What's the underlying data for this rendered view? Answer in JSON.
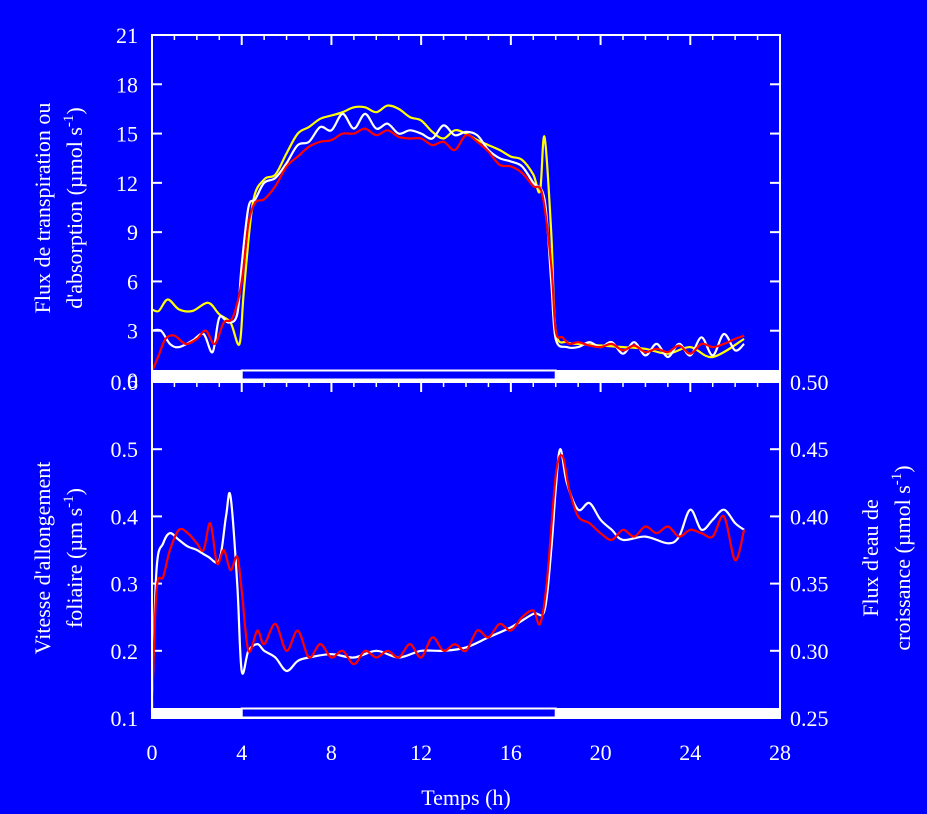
{
  "colors": {
    "background": "#0000ff",
    "frame": "#ffffff",
    "series_white": "#ffffff",
    "series_yellow": "#ffff00",
    "series_red": "#ff0000"
  },
  "chart_data": [
    {
      "type": "line",
      "panel": "top",
      "xlabel": "Temps (h)",
      "xlim": [
        0,
        28
      ],
      "x_ticks": [
        "0",
        "4",
        "8",
        "12",
        "16",
        "20",
        "24",
        "28"
      ],
      "ylabel_line1": "Flux de transpiration ou",
      "ylabel_line2": "d'absorption (µmol s",
      "ylabel_sup": "-1",
      "ylabel_end": ")",
      "ylim": [
        0,
        21
      ],
      "y_ticks": [
        "0",
        "3",
        "6",
        "9",
        "12",
        "15",
        "18",
        "21"
      ],
      "photoperiod": {
        "dark_before": [
          0,
          4
        ],
        "light": [
          4,
          18
        ],
        "dark_after": [
          18,
          28
        ]
      },
      "series": [
        {
          "color": "yellow",
          "x": [
            0,
            0.3,
            0.7,
            1.2,
            1.8,
            2.5,
            3.0,
            3.5,
            3.9,
            4.1,
            4.5,
            5.0,
            5.5,
            6.0,
            6.5,
            7.0,
            7.5,
            8.0,
            8.5,
            9.0,
            9.5,
            10.0,
            10.5,
            11.0,
            11.5,
            12.0,
            12.5,
            13.0,
            13.5,
            14.0,
            14.5,
            15.0,
            15.5,
            16.0,
            16.5,
            17.0,
            17.3,
            17.5,
            17.8,
            18.0,
            18.5,
            19.0,
            20.0,
            21.0,
            22.0,
            23.0,
            24.0,
            25.0,
            26.4
          ],
          "y": [
            4.3,
            4.2,
            4.9,
            4.3,
            4.2,
            4.7,
            4.0,
            3.5,
            2.2,
            5.5,
            10.8,
            12.2,
            12.5,
            13.8,
            15.0,
            15.4,
            15.9,
            16.1,
            16.3,
            16.6,
            16.6,
            16.3,
            16.7,
            16.5,
            16.0,
            15.8,
            15.1,
            14.7,
            15.2,
            15.0,
            14.6,
            14.3,
            14.0,
            13.6,
            13.4,
            12.5,
            11.5,
            14.8,
            9.0,
            3.0,
            2.3,
            2.2,
            2.1,
            2.0,
            1.9,
            1.6,
            2.0,
            1.4,
            2.5
          ]
        },
        {
          "color": "white",
          "x": [
            0,
            0.4,
            0.8,
            1.2,
            1.8,
            2.3,
            2.7,
            3.0,
            3.4,
            3.8,
            4.0,
            4.3,
            4.6,
            5.0,
            5.5,
            6.0,
            6.5,
            7.0,
            7.5,
            8.0,
            8.5,
            9.0,
            9.5,
            10.0,
            10.5,
            11.0,
            11.5,
            12.0,
            12.5,
            13.0,
            13.5,
            14.0,
            14.5,
            15.0,
            15.5,
            16.0,
            16.5,
            17.0,
            17.5,
            17.8,
            18.0,
            18.5,
            19.0,
            19.5,
            20.0,
            20.5,
            21.0,
            21.5,
            22.0,
            22.5,
            23.0,
            23.5,
            24.0,
            24.5,
            25.0,
            25.5,
            26.0,
            26.4
          ],
          "y": [
            3.0,
            3.0,
            2.2,
            2.0,
            2.4,
            2.8,
            1.7,
            3.8,
            3.5,
            4.0,
            7.0,
            10.5,
            11.0,
            12.0,
            12.3,
            13.2,
            14.3,
            14.5,
            15.4,
            15.2,
            16.2,
            15.3,
            16.2,
            15.3,
            15.6,
            15.0,
            15.2,
            15.0,
            14.7,
            15.5,
            14.9,
            15.1,
            14.9,
            14.0,
            13.5,
            13.3,
            13.0,
            12.0,
            11.0,
            6.0,
            2.5,
            2.0,
            2.0,
            2.3,
            2.0,
            2.3,
            1.6,
            2.3,
            1.5,
            2.2,
            1.4,
            2.2,
            1.5,
            2.6,
            1.5,
            2.8,
            1.8,
            2.2
          ]
        },
        {
          "color": "red",
          "x": [
            0,
            0.3,
            0.6,
            1.0,
            1.5,
            2.0,
            2.4,
            2.8,
            3.2,
            3.6,
            4.0,
            4.3,
            4.6,
            5.0,
            5.5,
            6.0,
            6.5,
            7.0,
            7.5,
            8.0,
            8.5,
            9.0,
            9.5,
            10.0,
            10.5,
            11.0,
            11.5,
            12.0,
            12.5,
            13.0,
            13.5,
            14.0,
            14.5,
            15.0,
            15.5,
            16.0,
            16.5,
            17.0,
            17.4,
            17.8,
            18.0,
            18.3,
            18.6,
            19.0,
            19.5,
            20.0,
            20.5,
            21.0,
            21.5,
            22.0,
            22.5,
            23.0,
            23.5,
            24.0,
            24.5,
            25.0,
            25.5,
            26.0,
            26.4
          ],
          "y": [
            0.5,
            1.5,
            2.5,
            2.7,
            2.2,
            2.5,
            3.0,
            2.2,
            3.5,
            3.8,
            6.0,
            9.5,
            10.8,
            11.0,
            11.8,
            13.0,
            13.6,
            14.2,
            14.5,
            14.6,
            15.0,
            15.0,
            15.3,
            14.9,
            15.2,
            14.8,
            14.7,
            14.7,
            14.3,
            14.5,
            14.0,
            14.9,
            14.5,
            13.9,
            13.1,
            13.0,
            12.6,
            11.8,
            11.3,
            7.0,
            3.0,
            2.6,
            2.2,
            2.3,
            2.1,
            2.0,
            2.2,
            1.8,
            2.1,
            1.7,
            1.9,
            1.7,
            2.1,
            1.6,
            2.2,
            2.0,
            2.2,
            2.5,
            2.7
          ]
        }
      ]
    },
    {
      "type": "line",
      "panel": "bottom",
      "xlabel": "Temps (h)",
      "xlim": [
        0,
        28
      ],
      "x_ticks": [
        "0",
        "4",
        "8",
        "12",
        "16",
        "20",
        "24",
        "28"
      ],
      "ylabel_left_line1": "Vitesse d'allongement",
      "ylabel_left_line2": "foliaire (µm s",
      "ylabel_left_sup": "-1",
      "ylabel_left_end": ")",
      "ylim_left": [
        0.1,
        0.6
      ],
      "y_ticks_left": [
        "0.1",
        "0.2",
        "0.3",
        "0.4",
        "0.5",
        "0.6"
      ],
      "ylabel_right_line1": "Flux d'eau de",
      "ylabel_right_line2": "croissance (µmol s",
      "ylabel_right_sup": "-1",
      "ylabel_right_end": ")",
      "ylim_right": [
        0.25,
        0.5
      ],
      "y_ticks_right": [
        "0.25",
        "0.30",
        "0.35",
        "0.40",
        "0.45",
        "0.50"
      ],
      "photoperiod": {
        "dark_before": [
          0,
          4
        ],
        "light": [
          4,
          18
        ],
        "dark_after": [
          18,
          28
        ]
      },
      "series": [
        {
          "color": "white",
          "x": [
            0,
            0.2,
            0.5,
            0.8,
            1.2,
            1.6,
            2.0,
            2.5,
            3.0,
            3.3,
            3.5,
            3.8,
            4.0,
            4.3,
            4.7,
            5.0,
            5.5,
            6.0,
            6.5,
            7.0,
            8.0,
            9.0,
            10.0,
            11.0,
            12.0,
            13.0,
            14.0,
            15.0,
            16.0,
            17.0,
            17.5,
            17.8,
            18.0,
            18.2,
            18.5,
            19.0,
            19.5,
            20.0,
            20.5,
            21.0,
            22.0,
            23.0,
            23.5,
            24.0,
            24.5,
            25.0,
            25.5,
            26.0,
            26.4
          ],
          "y": [
            0.11,
            0.32,
            0.36,
            0.375,
            0.365,
            0.355,
            0.35,
            0.34,
            0.335,
            0.4,
            0.43,
            0.3,
            0.17,
            0.2,
            0.21,
            0.2,
            0.19,
            0.17,
            0.185,
            0.19,
            0.195,
            0.19,
            0.2,
            0.19,
            0.2,
            0.2,
            0.205,
            0.22,
            0.235,
            0.255,
            0.26,
            0.35,
            0.44,
            0.5,
            0.45,
            0.41,
            0.42,
            0.395,
            0.38,
            0.365,
            0.37,
            0.36,
            0.37,
            0.41,
            0.38,
            0.395,
            0.41,
            0.39,
            0.38
          ]
        },
        {
          "color": "red",
          "x": [
            0,
            0.2,
            0.5,
            0.8,
            1.2,
            1.6,
            2.0,
            2.3,
            2.6,
            2.9,
            3.2,
            3.5,
            3.8,
            4.0,
            4.3,
            4.7,
            5.0,
            5.5,
            6.0,
            6.5,
            7.0,
            7.5,
            8.0,
            8.5,
            9.0,
            9.5,
            10.0,
            10.5,
            11.0,
            11.5,
            12.0,
            12.5,
            13.0,
            13.5,
            14.0,
            14.5,
            15.0,
            15.5,
            16.0,
            16.5,
            17.0,
            17.3,
            17.6,
            18.0,
            18.3,
            18.6,
            19.0,
            19.5,
            20.0,
            20.5,
            21.0,
            21.5,
            22.0,
            22.5,
            23.0,
            23.5,
            24.0,
            24.5,
            25.0,
            25.5,
            26.0,
            26.4
          ],
          "y": [
            0.11,
            0.29,
            0.31,
            0.35,
            0.38,
            0.375,
            0.36,
            0.35,
            0.39,
            0.33,
            0.35,
            0.32,
            0.34,
            0.29,
            0.2,
            0.23,
            0.21,
            0.24,
            0.2,
            0.23,
            0.19,
            0.21,
            0.19,
            0.2,
            0.18,
            0.2,
            0.19,
            0.2,
            0.19,
            0.21,
            0.19,
            0.22,
            0.2,
            0.21,
            0.2,
            0.23,
            0.22,
            0.24,
            0.23,
            0.25,
            0.26,
            0.24,
            0.3,
            0.46,
            0.49,
            0.44,
            0.4,
            0.39,
            0.375,
            0.365,
            0.38,
            0.37,
            0.385,
            0.375,
            0.385,
            0.37,
            0.38,
            0.375,
            0.37,
            0.4,
            0.335,
            0.38
          ]
        }
      ]
    }
  ]
}
